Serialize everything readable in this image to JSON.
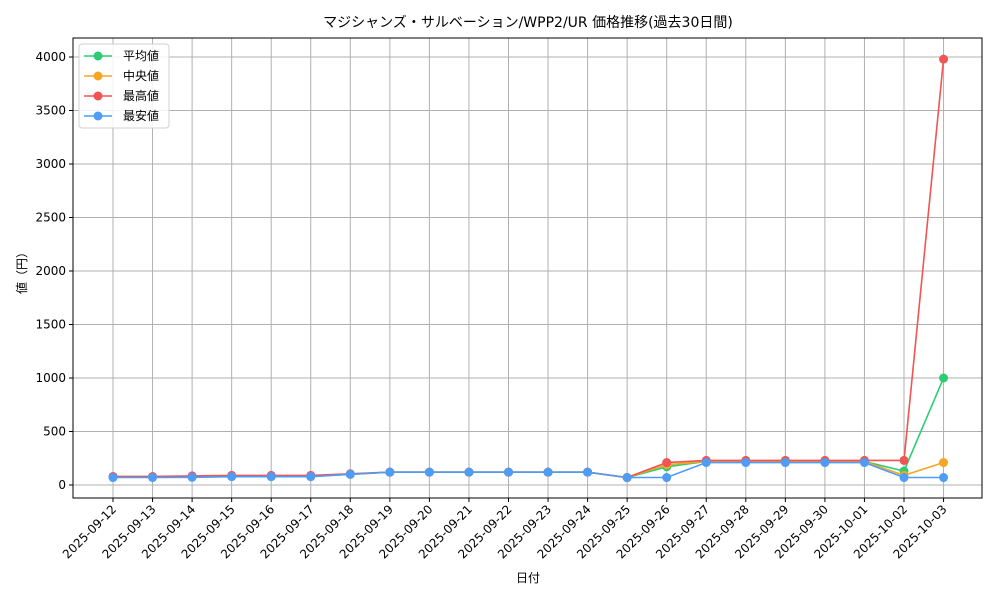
{
  "chart_data": {
    "type": "line",
    "title": "マジシャンズ・サルベーション/WPP2/UR 価格推移(過去30日間)",
    "xlabel": "日付",
    "ylabel": "値（円）",
    "ylim": [
      -120,
      4180
    ],
    "yticks": [
      0,
      500,
      1000,
      1500,
      2000,
      2500,
      3000,
      3500,
      4000
    ],
    "grid": true,
    "legend_position": "upper left",
    "x": [
      "2025-09-12",
      "2025-09-13",
      "2025-09-14",
      "2025-09-15",
      "2025-09-16",
      "2025-09-17",
      "2025-09-18",
      "2025-09-19",
      "2025-09-20",
      "2025-09-21",
      "2025-09-22",
      "2025-09-23",
      "2025-09-24",
      "2025-09-25",
      "2025-09-26",
      "2025-09-27",
      "2025-09-28",
      "2025-09-29",
      "2025-09-30",
      "2025-10-01",
      "2025-10-02",
      "2025-10-03"
    ],
    "series": [
      {
        "name": "平均値",
        "color": "#2ecc71",
        "values": [
          75,
          75,
          78,
          82,
          82,
          82,
          100,
          120,
          120,
          120,
          120,
          120,
          120,
          70,
          170,
          220,
          220,
          220,
          220,
          220,
          130,
          1000
        ]
      },
      {
        "name": "中央値",
        "color": "#f5a623",
        "values": [
          75,
          75,
          78,
          82,
          82,
          82,
          100,
          120,
          120,
          120,
          120,
          120,
          120,
          70,
          190,
          220,
          220,
          220,
          220,
          220,
          90,
          210
        ]
      },
      {
        "name": "最高値",
        "color": "#f05454",
        "values": [
          80,
          80,
          85,
          90,
          90,
          90,
          105,
          120,
          120,
          120,
          120,
          120,
          120,
          70,
          210,
          230,
          230,
          230,
          230,
          230,
          230,
          3980
        ]
      },
      {
        "name": "最安値",
        "color": "#4f9cf5",
        "values": [
          70,
          70,
          72,
          78,
          78,
          78,
          100,
          120,
          120,
          120,
          120,
          120,
          120,
          70,
          70,
          210,
          210,
          210,
          210,
          210,
          70,
          70
        ]
      }
    ]
  }
}
